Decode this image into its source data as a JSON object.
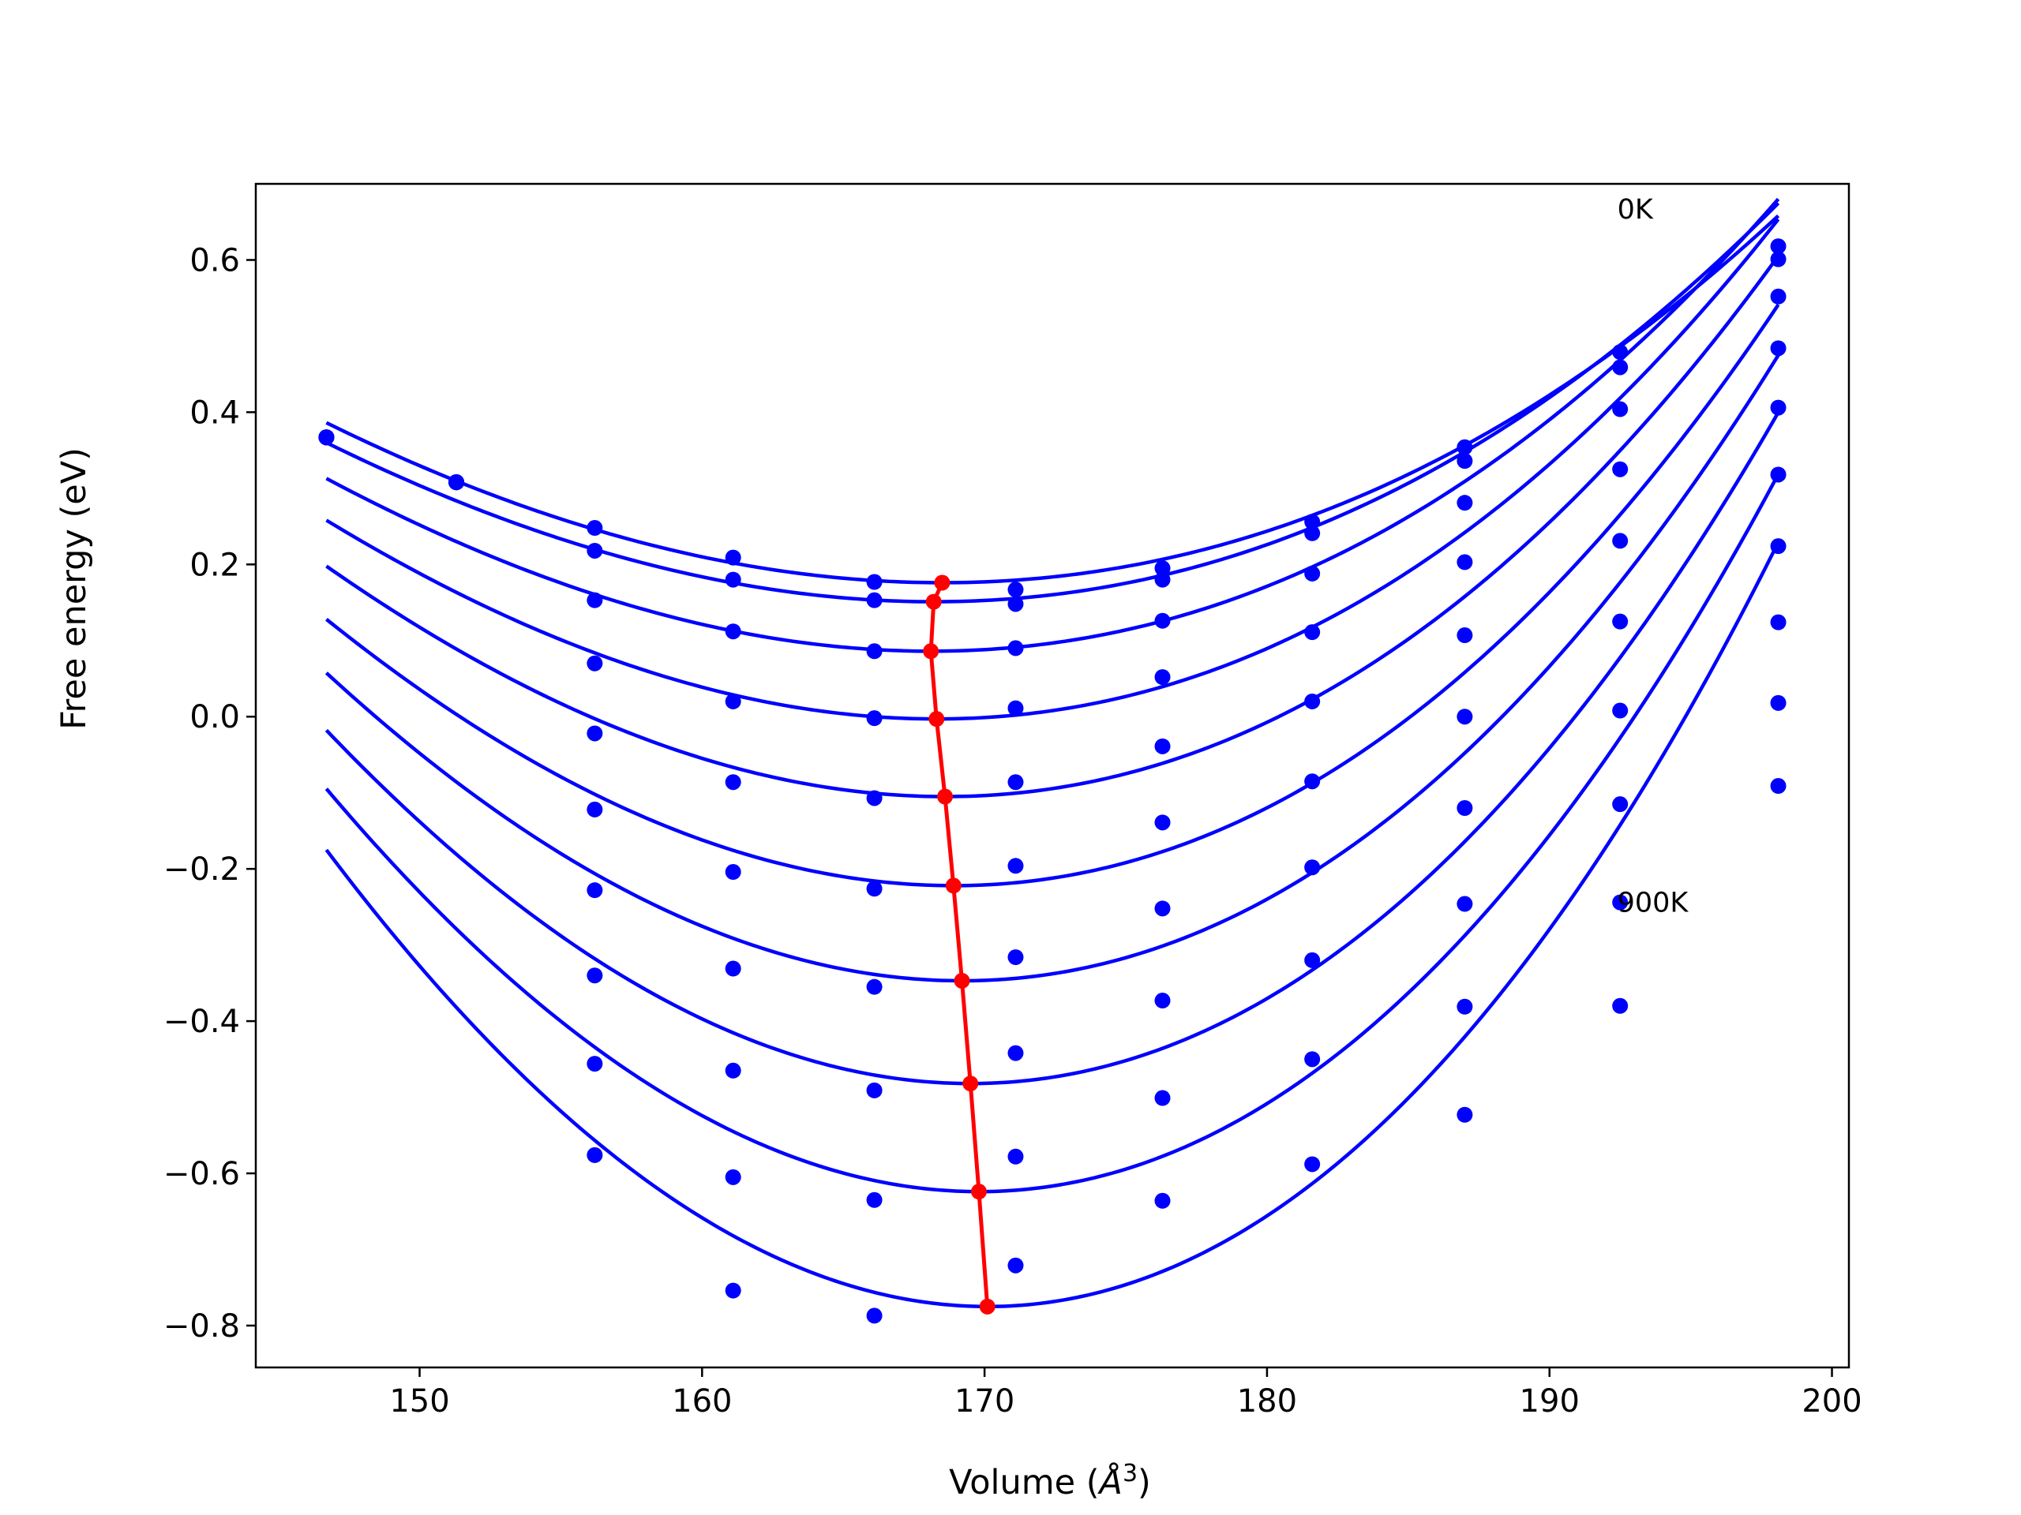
{
  "chart_data": {
    "type": "line",
    "title": "",
    "xlabel_text": "Volume (",
    "xlabel_unit": "Å",
    "xlabel_exponent": "3",
    "xlabel_close": ")",
    "ylabel": "Free energy (eV)",
    "xlim": [
      144.2,
      200.6
    ],
    "ylim": [
      -0.855,
      0.7
    ],
    "grid": false,
    "legend": "none",
    "colors": {
      "curves": "#0000ff",
      "points": "#0000ff",
      "minimum_path": "#ff0000",
      "axes": "#000000"
    },
    "x_ticks": [
      150,
      160,
      170,
      180,
      190,
      200
    ],
    "x_tick_labels": [
      "150",
      "160",
      "170",
      "180",
      "190",
      "200"
    ],
    "y_ticks": [
      -0.8,
      -0.6,
      -0.4,
      -0.2,
      0.0,
      0.2,
      0.4,
      0.6
    ],
    "y_tick_labels": [
      "−0.8",
      "−0.6",
      "−0.4",
      "−0.2",
      "0.0",
      "0.2",
      "0.4",
      "0.6"
    ],
    "annotations": [
      {
        "text": "0K",
        "x": 192.4,
        "y": 0.667
      },
      {
        "text": "900K",
        "x": 192.4,
        "y": -0.244
      }
    ],
    "volumes": [
      146.7,
      151.3,
      156.2,
      161.1,
      166.1,
      171.1,
      176.3,
      181.6,
      187.0,
      192.5,
      198.1
    ],
    "fit_x_range": [
      146.7,
      198.1
    ],
    "series": [
      {
        "points": [
          0.367,
          0.308,
          0.248,
          0.209,
          0.177,
          0.167,
          0.195,
          0.256,
          0.354,
          0.479,
          0.618
        ],
        "curve": {
          "v0": 168.5,
          "e0": 0.176,
          "a": 0.000488,
          "b": 2.1e-06
        }
      },
      {
        "points": [
          0.367,
          0.308,
          0.218,
          0.18,
          0.153,
          0.148,
          0.18,
          0.241,
          0.336,
          0.459,
          0.601
        ],
        "curve": {
          "v0": 168.2,
          "e0": 0.151,
          "a": 0.000508,
          "b": 2.6e-06
        }
      },
      {
        "points": [
          0.367,
          0.308,
          0.153,
          0.112,
          0.086,
          0.09,
          0.126,
          0.188,
          0.281,
          0.404,
          0.552
        ],
        "curve": {
          "v0": 168.1,
          "e0": 0.086,
          "a": 0.000564,
          "b": 3.2e-06
        }
      },
      {
        "points": [
          0.367,
          0.308,
          0.07,
          0.02,
          -0.002,
          0.011,
          0.052,
          0.111,
          0.203,
          0.325,
          0.484
        ],
        "curve": {
          "v0": 168.3,
          "e0": -0.003,
          "a": 0.000635,
          "b": 3.5e-06
        }
      },
      {
        "points": [
          0.367,
          0.308,
          -0.022,
          -0.086,
          -0.107,
          -0.086,
          -0.039,
          0.02,
          0.107,
          0.231,
          0.406
        ],
        "curve": {
          "v0": 168.6,
          "e0": -0.105,
          "a": 0.00071,
          "b": 3.6e-06
        }
      },
      {
        "points": [
          0.367,
          0.308,
          -0.122,
          -0.204,
          -0.226,
          -0.196,
          -0.139,
          -0.085,
          0.0,
          0.125,
          0.318
        ],
        "curve": {
          "v0": 168.9,
          "e0": -0.222,
          "a": 0.00079,
          "b": 3.6e-06
        }
      },
      {
        "points": [
          0.367,
          0.308,
          -0.228,
          -0.331,
          -0.355,
          -0.316,
          -0.252,
          -0.198,
          -0.12,
          0.008,
          0.224
        ],
        "curve": {
          "v0": 169.2,
          "e0": -0.347,
          "a": 0.00088,
          "b": 3.6e-06
        }
      },
      {
        "points": [
          0.367,
          0.308,
          -0.34,
          -0.465,
          -0.491,
          -0.442,
          -0.373,
          -0.32,
          -0.246,
          -0.115,
          0.124
        ],
        "curve": {
          "v0": 169.5,
          "e0": -0.482,
          "a": 0.000975,
          "b": 3.6e-06
        }
      },
      {
        "points": [
          0.367,
          0.308,
          -0.456,
          -0.605,
          -0.635,
          -0.578,
          -0.501,
          -0.45,
          -0.381,
          -0.244,
          0.018
        ],
        "curve": {
          "v0": 169.8,
          "e0": -0.624,
          "a": 0.001075,
          "b": 3.6e-06
        }
      },
      {
        "points": [
          0.367,
          0.308,
          -0.576,
          -0.754,
          -0.787,
          -0.721,
          -0.636,
          -0.588,
          -0.523,
          -0.38,
          -0.091
        ],
        "curve": {
          "v0": 170.1,
          "e0": -0.775,
          "a": 0.00118,
          "b": 3.6e-06
        }
      }
    ],
    "minimum_path": {
      "x": [
        168.5,
        168.2,
        168.1,
        168.3,
        168.6,
        168.9,
        169.2,
        169.5,
        169.8,
        170.1
      ],
      "y": [
        0.176,
        0.151,
        0.086,
        -0.003,
        -0.105,
        -0.222,
        -0.347,
        -0.482,
        -0.624,
        -0.775
      ]
    }
  }
}
